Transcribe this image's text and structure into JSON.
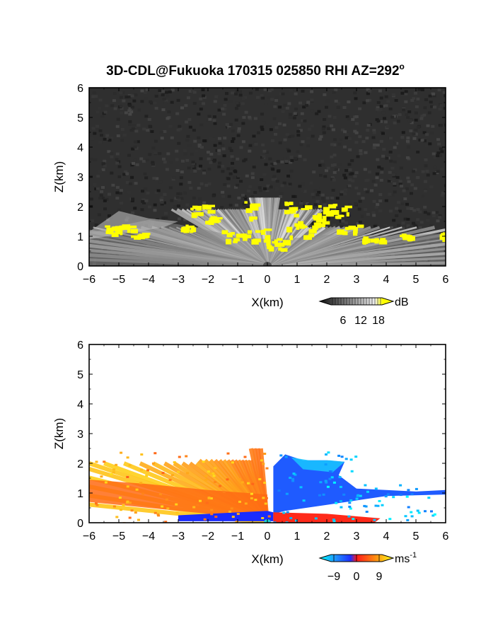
{
  "title_main": "3D-CDL@Fukuoka 170315 025850 RHI AZ=292",
  "title_sup": "o",
  "chart_data": [
    {
      "type": "heatmap",
      "panel": "reflectivity",
      "xlabel": "X(km)",
      "ylabel": "Z(km)",
      "xlim": [
        -6,
        6
      ],
      "ylim": [
        0,
        6
      ],
      "xticks": [
        "-6",
        "-5",
        "-4",
        "-3",
        "-2",
        "-1",
        "0",
        "1",
        "2",
        "3",
        "4",
        "5",
        "6"
      ],
      "yticks": [
        "0",
        "1",
        "2",
        "3",
        "4",
        "5",
        "6"
      ],
      "colorbar": {
        "unit": "dB",
        "ticks": [
          "6",
          "12",
          "18"
        ],
        "range": [
          0,
          21
        ]
      },
      "colors": {
        "background": "#2e2e2e",
        "high": "#ffff00"
      },
      "description_regions": [
        {
          "x": [
            -6,
            6
          ],
          "z": [
            0,
            1.2
          ],
          "level": "gray"
        },
        {
          "x": [
            -1.5,
            2.5
          ],
          "z": [
            0.8,
            2.2
          ],
          "level": "yellow"
        }
      ]
    },
    {
      "type": "heatmap",
      "panel": "doppler_velocity",
      "xlabel": "X(km)",
      "ylabel": "Z(km)",
      "xlim": [
        -6,
        6
      ],
      "ylim": [
        0,
        6
      ],
      "xticks": [
        "-6",
        "-5",
        "-4",
        "-3",
        "-2",
        "-1",
        "0",
        "1",
        "2",
        "3",
        "4",
        "5",
        "6"
      ],
      "yticks": [
        "0",
        "1",
        "2",
        "3",
        "4",
        "5",
        "6"
      ],
      "colorbar": {
        "unit": "ms",
        "unit_exp": "-1",
        "ticks": [
          "−9",
          "0",
          "9"
        ],
        "range": [
          -12,
          12
        ]
      },
      "colors": {
        "negative": "#1f3fff",
        "zero": "#ff2a1a",
        "positive": "#ffe21a"
      }
    }
  ]
}
